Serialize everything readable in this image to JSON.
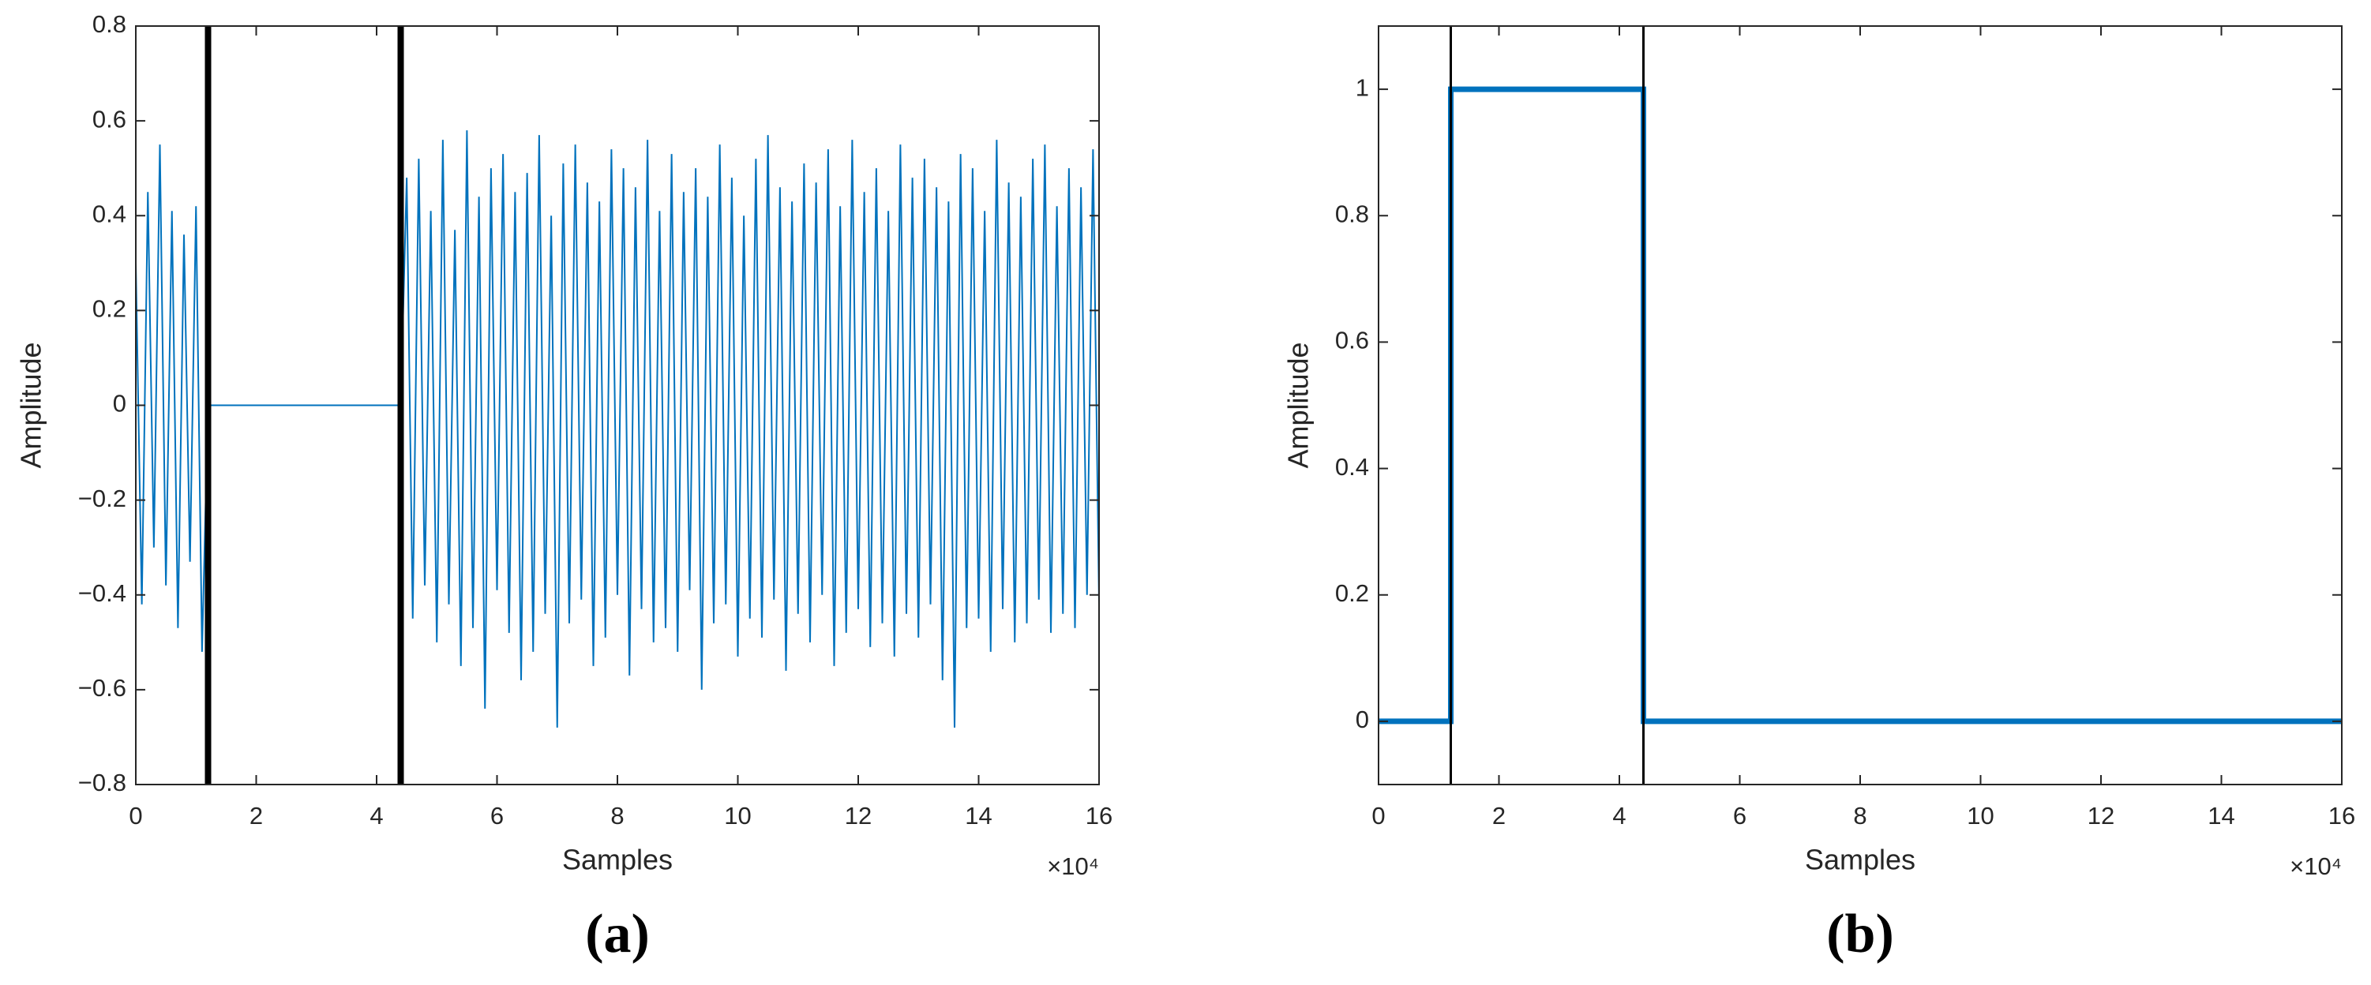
{
  "chart_data": [
    {
      "type": "line",
      "caption": "(a)",
      "xlabel": "Samples",
      "ylabel": "Amplitude",
      "x_multiplier": "×10⁴",
      "xlim": [
        0,
        160000
      ],
      "ylim": [
        -0.8,
        0.8
      ],
      "xticks": [
        0,
        {
          "value": 20000,
          "label": "2"
        },
        {
          "value": 40000,
          "label": "4"
        },
        {
          "value": 60000,
          "label": "6"
        },
        {
          "value": 80000,
          "label": "8"
        },
        {
          "value": 100000,
          "label": "10"
        },
        {
          "value": 120000,
          "label": "12"
        },
        {
          "value": 140000,
          "label": "14"
        },
        {
          "value": 160000,
          "label": "16"
        }
      ],
      "yticks": [
        {
          "value": -0.8,
          "label": "−0.8"
        },
        {
          "value": -0.6,
          "label": "−0.6"
        },
        {
          "value": -0.4,
          "label": "−0.4"
        },
        {
          "value": -0.2,
          "label": "−0.2"
        },
        0,
        0.2,
        0.4,
        0.6,
        0.8
      ],
      "vlines": [
        12000,
        44000
      ],
      "vline_color": "#000000",
      "x": [
        0,
        1000,
        2000,
        3000,
        4000,
        5000,
        6000,
        7000,
        8000,
        9000,
        10000,
        11000,
        12000,
        13000,
        14000,
        15000,
        16000,
        17000,
        18000,
        19000,
        20000,
        21000,
        22000,
        23000,
        24000,
        25000,
        26000,
        27000,
        28000,
        29000,
        30000,
        31000,
        32000,
        33000,
        34000,
        35000,
        36000,
        37000,
        38000,
        39000,
        40000,
        41000,
        42000,
        43000,
        44000,
        45000,
        46000,
        47000,
        48000,
        49000,
        50000,
        51000,
        52000,
        53000,
        54000,
        55000,
        56000,
        57000,
        58000,
        59000,
        60000,
        61000,
        62000,
        63000,
        64000,
        65000,
        66000,
        67000,
        68000,
        69000,
        70000,
        71000,
        72000,
        73000,
        74000,
        75000,
        76000,
        77000,
        78000,
        79000,
        80000,
        81000,
        82000,
        83000,
        84000,
        85000,
        86000,
        87000,
        88000,
        89000,
        90000,
        91000,
        92000,
        93000,
        94000,
        95000,
        96000,
        97000,
        98000,
        99000,
        100000,
        101000,
        102000,
        103000,
        104000,
        105000,
        106000,
        107000,
        108000,
        109000,
        110000,
        111000,
        112000,
        113000,
        114000,
        115000,
        116000,
        117000,
        118000,
        119000,
        120000,
        121000,
        122000,
        123000,
        124000,
        125000,
        126000,
        127000,
        128000,
        129000,
        130000,
        131000,
        132000,
        133000,
        134000,
        135000,
        136000,
        137000,
        138000,
        139000,
        140000,
        141000,
        142000,
        143000,
        144000,
        145000,
        146000,
        147000,
        148000,
        149000,
        150000,
        151000,
        152000,
        153000,
        154000,
        155000,
        156000,
        157000,
        158000,
        159000,
        160000
      ],
      "series": [
        {
          "color": "#0072bd",
          "values": [
            0.3,
            -0.42,
            0.45,
            -0.3,
            0.55,
            -0.38,
            0.41,
            -0.47,
            0.36,
            -0.33,
            0.42,
            -0.52,
            0,
            0,
            0,
            0,
            0,
            0,
            0,
            0,
            0,
            0,
            0,
            0,
            0,
            0,
            0,
            0,
            0,
            0,
            0,
            0,
            0,
            0,
            0,
            0,
            0,
            0,
            0,
            0,
            0,
            0,
            0,
            0,
            0,
            0.48,
            -0.45,
            0.52,
            -0.38,
            0.41,
            -0.5,
            0.56,
            -0.42,
            0.37,
            -0.55,
            0.58,
            -0.47,
            0.44,
            -0.64,
            0.5,
            -0.39,
            0.53,
            -0.48,
            0.45,
            -0.58,
            0.49,
            -0.52,
            0.57,
            -0.44,
            0.4,
            -0.68,
            0.51,
            -0.46,
            0.55,
            -0.41,
            0.47,
            -0.55,
            0.43,
            -0.49,
            0.54,
            -0.4,
            0.5,
            -0.57,
            0.46,
            -0.43,
            0.56,
            -0.5,
            0.41,
            -0.47,
            0.53,
            -0.52,
            0.45,
            -0.39,
            0.5,
            -0.6,
            0.44,
            -0.46,
            0.55,
            -0.42,
            0.48,
            -0.53,
            0.4,
            -0.45,
            0.52,
            -0.49,
            0.57,
            -0.41,
            0.46,
            -0.56,
            0.43,
            -0.44,
            0.51,
            -0.5,
            0.47,
            -0.4,
            0.54,
            -0.55,
            0.42,
            -0.48,
            0.56,
            -0.43,
            0.45,
            -0.51,
            0.5,
            -0.46,
            0.41,
            -0.53,
            0.55,
            -0.44,
            0.48,
            -0.49,
            0.52,
            -0.42,
            0.46,
            -0.58,
            0.43,
            -0.68,
            0.53,
            -0.47,
            0.5,
            -0.45,
            0.41,
            -0.52,
            0.56,
            -0.43,
            0.47,
            -0.5,
            0.44,
            -0.46,
            0.52,
            -0.41,
            0.55,
            -0.48,
            0.42,
            -0.44,
            0.5,
            -0.47,
            0.46,
            -0.4,
            0.54,
            -0.42
          ]
        }
      ]
    },
    {
      "type": "line",
      "caption": "(b)",
      "xlabel": "Samples",
      "ylabel": "Amplitude",
      "x_multiplier": "×10⁴",
      "xlim": [
        0,
        160000
      ],
      "ylim": [
        -0.1,
        1.1
      ],
      "xticks": [
        0,
        {
          "value": 20000,
          "label": "2"
        },
        {
          "value": 40000,
          "label": "4"
        },
        {
          "value": 60000,
          "label": "6"
        },
        {
          "value": 80000,
          "label": "8"
        },
        {
          "value": 100000,
          "label": "10"
        },
        {
          "value": 120000,
          "label": "12"
        },
        {
          "value": 140000,
          "label": "14"
        },
        {
          "value": 160000,
          "label": "16"
        }
      ],
      "yticks": [
        0,
        0.2,
        0.4,
        0.6,
        0.8,
        1
      ],
      "vlines": [
        12000,
        44000
      ],
      "vline_color": "#000000",
      "x": [
        0,
        12000,
        12000,
        44000,
        44000,
        160000
      ],
      "series": [
        {
          "color": "#0072bd",
          "values": [
            0,
            0,
            1,
            1,
            0,
            0
          ]
        }
      ]
    }
  ]
}
